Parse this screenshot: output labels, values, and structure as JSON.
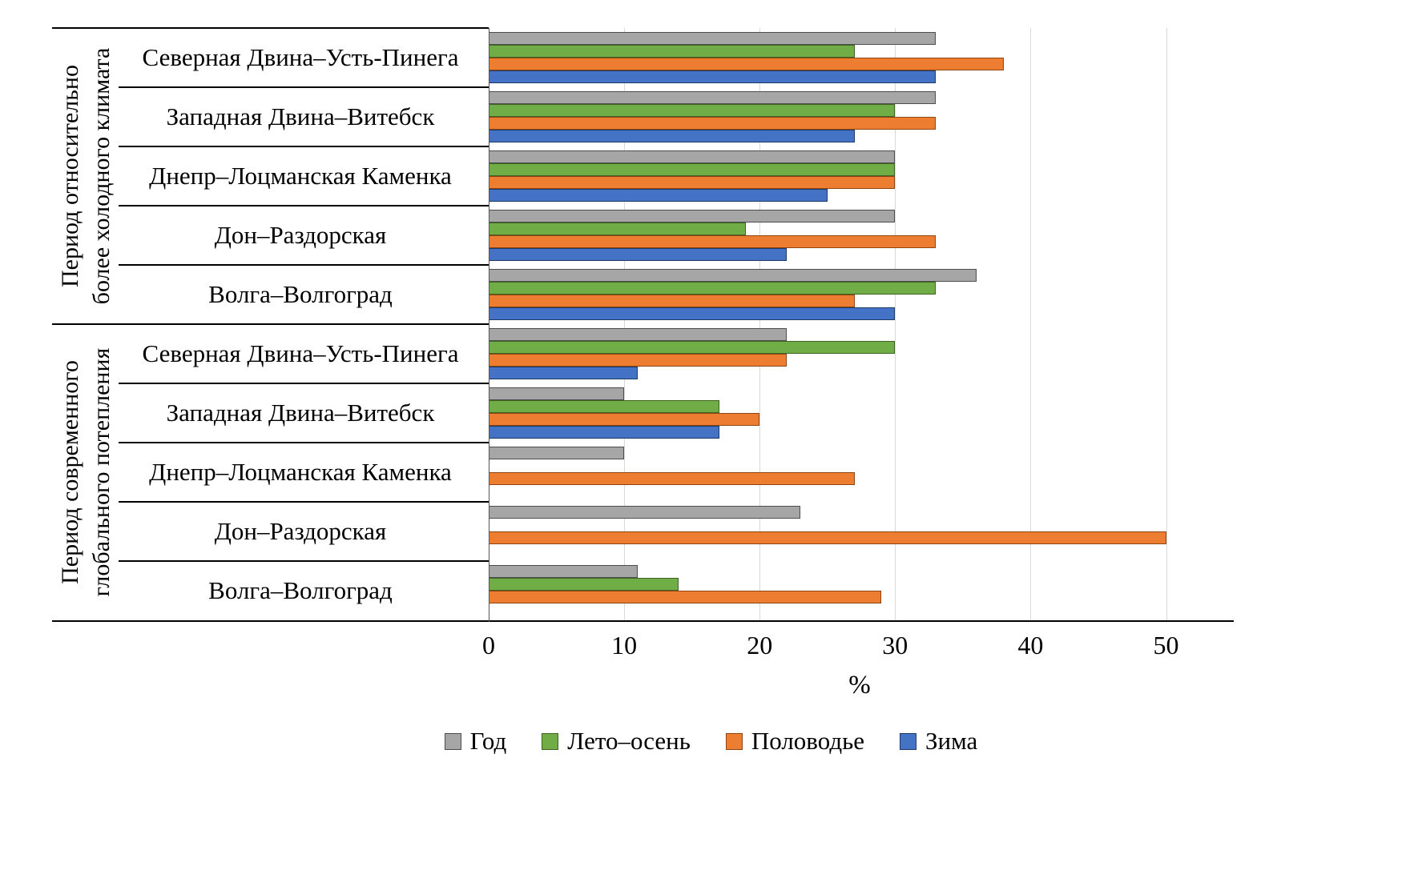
{
  "chart_data": {
    "type": "bar",
    "orientation": "horizontal",
    "xlabel": "%",
    "xlim": [
      0,
      55
    ],
    "x_ticks": [
      0,
      10,
      20,
      30,
      40,
      50
    ],
    "grid": true,
    "legend_position": "bottom",
    "legend": [
      {
        "key": "year",
        "name": "Год",
        "fill": "#a6a6a6",
        "border": "#4d4d4d"
      },
      {
        "key": "summer-autumn",
        "name": "Лето–осень",
        "fill": "#70ad47",
        "border": "#3e6323"
      },
      {
        "key": "flood",
        "name": "Половодье",
        "fill": "#ed7d31",
        "border": "#8f4511"
      },
      {
        "key": "winter",
        "name": "Зима",
        "fill": "#4472c4",
        "border": "#1f3864"
      }
    ],
    "groups": [
      {
        "period": "Период относительно\nболее холодного климата",
        "categories": [
          "Северная Двина–Усть-Пинега",
          "Западная Двина–Витебск",
          "Днепр–Лоцманская Каменка",
          "Дон–Раздорская",
          "Волга–Волгоград"
        ],
        "series": [
          {
            "key": "year",
            "name": "Год",
            "values": [
              33,
              33,
              30,
              30,
              36
            ]
          },
          {
            "key": "summer-autumn",
            "name": "Лето–осень",
            "values": [
              27,
              30,
              30,
              19,
              33
            ]
          },
          {
            "key": "flood",
            "name": "Половодье",
            "values": [
              38,
              33,
              30,
              33,
              27
            ]
          },
          {
            "key": "winter",
            "name": "Зима",
            "values": [
              33,
              27,
              25,
              22,
              30
            ]
          }
        ]
      },
      {
        "period": "Период современного\nглобального потепления",
        "categories": [
          "Северная Двина–Усть-Пинега",
          "Западная Двина–Витебск",
          "Днепр–Лоцманская Каменка",
          "Дон–Раздорская",
          "Волга–Волгоград"
        ],
        "series": [
          {
            "key": "year",
            "name": "Год",
            "values": [
              22,
              10,
              10,
              23,
              11
            ]
          },
          {
            "key": "summer-autumn",
            "name": "Лето–осень",
            "values": [
              30,
              17,
              null,
              null,
              14
            ]
          },
          {
            "key": "flood",
            "name": "Половодье",
            "values": [
              22,
              20,
              27,
              50,
              29
            ]
          },
          {
            "key": "winter",
            "name": "Зима",
            "values": [
              11,
              17,
              null,
              null,
              null
            ]
          }
        ]
      }
    ]
  }
}
